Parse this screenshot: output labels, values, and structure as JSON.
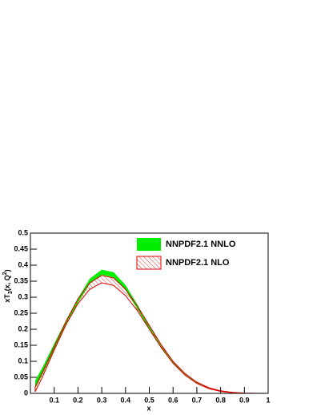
{
  "chart_data": {
    "type": "band",
    "ylabel": [
      "xT",
      "3",
      "(x, Q",
      "2",
      ")"
    ],
    "xlabel": "x",
    "x": [
      0.02,
      0.05,
      0.1,
      0.15,
      0.2,
      0.25,
      0.3,
      0.35,
      0.4,
      0.45,
      0.5,
      0.55,
      0.6,
      0.65,
      0.7,
      0.75,
      0.8,
      0.85,
      0.9,
      0.95,
      1.0
    ],
    "series": [
      {
        "name": "NNPDF2.1 NNLO",
        "color": "#00ee00",
        "style": "solid",
        "lower": [
          0.015,
          0.058,
          0.135,
          0.212,
          0.283,
          0.342,
          0.37,
          0.362,
          0.322,
          0.263,
          0.2,
          0.141,
          0.092,
          0.056,
          0.03,
          0.015,
          0.006,
          0.002,
          0.0004,
          0,
          0
        ],
        "upper": [
          0.04,
          0.08,
          0.155,
          0.228,
          0.297,
          0.358,
          0.386,
          0.378,
          0.338,
          0.277,
          0.21,
          0.149,
          0.098,
          0.06,
          0.034,
          0.017,
          0.008,
          0.003,
          0.0008,
          0.0002,
          0
        ]
      },
      {
        "name": "NNPDF2.1 NLO",
        "color": "#dd0000",
        "style": "hatch",
        "lower": [
          0.005,
          0.05,
          0.135,
          0.215,
          0.28,
          0.325,
          0.345,
          0.337,
          0.305,
          0.258,
          0.2,
          0.143,
          0.094,
          0.057,
          0.031,
          0.015,
          0.006,
          0.002,
          0.0004,
          0,
          0
        ],
        "upper": [
          0.02,
          0.065,
          0.145,
          0.225,
          0.295,
          0.345,
          0.368,
          0.36,
          0.325,
          0.272,
          0.212,
          0.152,
          0.1,
          0.062,
          0.035,
          0.018,
          0.008,
          0.003,
          0.0008,
          0.0002,
          0
        ]
      }
    ],
    "xlim": [
      0,
      1
    ],
    "ylim": [
      0,
      0.5
    ],
    "xticks": [
      0.1,
      0.2,
      0.3,
      0.4,
      0.5,
      0.6,
      0.7,
      0.8,
      0.9,
      1
    ],
    "yticks": [
      0,
      0.05,
      0.1,
      0.15,
      0.2,
      0.25,
      0.3,
      0.35,
      0.4,
      0.45,
      0.5
    ],
    "legend": "top-right"
  }
}
